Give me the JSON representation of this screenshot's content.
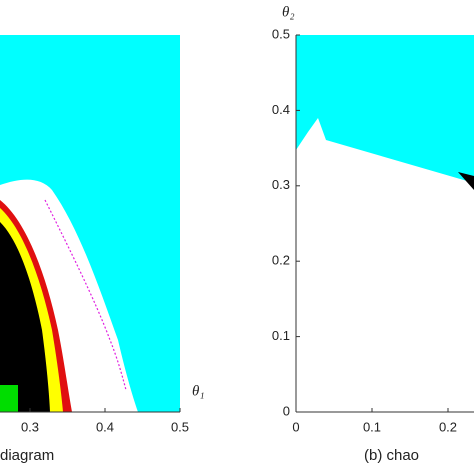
{
  "chart_data": [
    {
      "type": "region",
      "xlabel": "θ₁",
      "caption": "diagram",
      "xlim": [
        0.26,
        0.5
      ],
      "ylim": [
        0,
        0.5
      ],
      "xticks": [
        0.3,
        0.4,
        0.5
      ]
    },
    {
      "type": "region",
      "ylabel": "θ₂",
      "caption": "(b) chao",
      "xlim": [
        0,
        0.5
      ],
      "ylim": [
        0,
        0.5
      ],
      "xticks": [
        0,
        0.1,
        0.2
      ],
      "yticks": [
        0,
        0.1,
        0.2,
        0.3,
        0.4,
        0.5
      ]
    }
  ]
}
